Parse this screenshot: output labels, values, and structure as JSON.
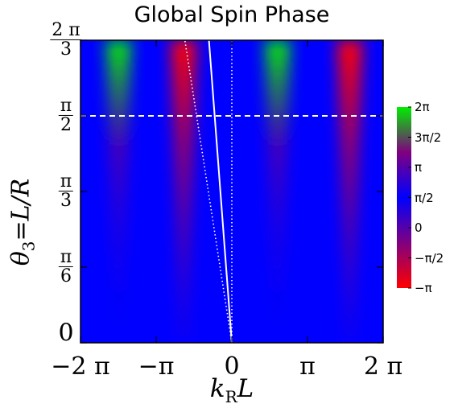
{
  "chart_data": {
    "type": "heatmap",
    "title": "Global Spin Phase",
    "xlabel_main": "k",
    "xlabel_sub": "R",
    "xlabel_tail": "L",
    "ylabel_main": "θ",
    "ylabel_sub": "3",
    "ylabel_tail": "=L/R",
    "xlim": [
      -6.2832,
      6.2832
    ],
    "ylim": [
      0,
      2.0944
    ],
    "x_ticks": [
      {
        "value": -6.2832,
        "label": "−2 π"
      },
      {
        "value": -3.1416,
        "label": "−π"
      },
      {
        "value": 0,
        "label": "0"
      },
      {
        "value": 3.1416,
        "label": "π"
      },
      {
        "value": 6.2832,
        "label": "2 π"
      }
    ],
    "y_ticks": [
      {
        "value": 0,
        "num": "0",
        "den": ""
      },
      {
        "value": 0.5236,
        "num": "π",
        "den": "6"
      },
      {
        "value": 1.0472,
        "num": "π",
        "den": "3"
      },
      {
        "value": 1.5708,
        "num": "π",
        "den": "2"
      },
      {
        "value": 2.0944,
        "num": "2 π",
        "den": "3"
      }
    ],
    "colorbar": {
      "range": [
        -3.1416,
        6.2832
      ],
      "colors": [
        "#ff0000",
        "#800080",
        "#0000ff",
        "#800080",
        "#00ee00"
      ],
      "ticks": [
        {
          "value": 6.2832,
          "label": "2π"
        },
        {
          "value": 4.7124,
          "label": "3π/2"
        },
        {
          "value": 3.1416,
          "label": "π"
        },
        {
          "value": 1.5708,
          "label": "π/2"
        },
        {
          "value": 0,
          "label": "0"
        },
        {
          "value": -1.5708,
          "label": "−π/2"
        },
        {
          "value": -3.1416,
          "label": "−π"
        }
      ]
    },
    "hotspots": [
      {
        "x": -4.7,
        "y": 2.0944,
        "value": 6.2832
      },
      {
        "x": -2.0,
        "y": 2.0944,
        "value": -3.1416
      },
      {
        "x": 1.9,
        "y": 2.0944,
        "value": 6.2832
      },
      {
        "x": 4.9,
        "y": 2.0944,
        "value": -3.1416
      }
    ],
    "dashed_hline": {
      "y": 1.5708,
      "color": "#ffffff"
    },
    "solid_line": {
      "points": [
        [
          0,
          0
        ],
        [
          -0.95,
          2.0944
        ]
      ],
      "color": "#ffffff"
    },
    "dotted_lines": [
      {
        "points": [
          [
            0,
            0
          ],
          [
            -1.95,
            2.0944
          ]
        ],
        "color": "#ffffff"
      },
      {
        "points": [
          [
            0,
            0
          ],
          [
            0,
            2.0944
          ]
        ],
        "color": "#ffffff"
      }
    ]
  }
}
